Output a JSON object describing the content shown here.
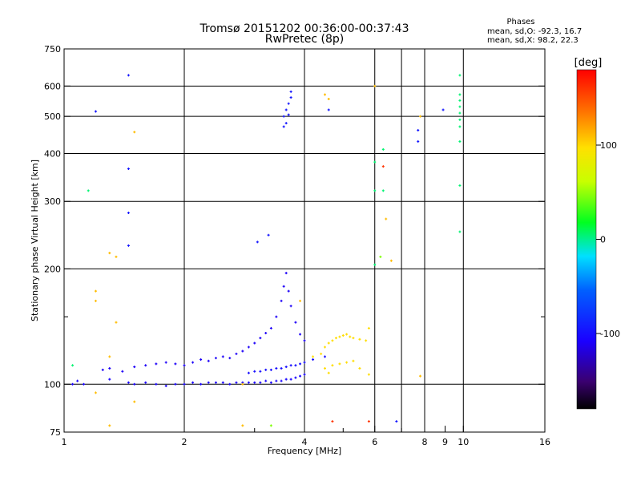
{
  "chart_data": {
    "type": "scatter",
    "title": "Tromsø 20151202 00:36:00-00:37:43",
    "subtitle": "RwPretec (8p)",
    "stats": {
      "header": "Phases",
      "line1": "mean, sd,O: -92.3, 16.7",
      "line2": "mean, sd,X:  98.2, 22.3"
    },
    "xlabel": "Frequency [MHz]",
    "ylabel": "Stationary phase Virtual Height [km]",
    "xscale": "log",
    "yscale": "log",
    "xlim": [
      1,
      16
    ],
    "ylim": [
      75,
      750
    ],
    "xticks": [
      1,
      2,
      4,
      6,
      8,
      9,
      10,
      16
    ],
    "xtick_labels": [
      "1",
      "2",
      "4",
      "6",
      "8",
      "9",
      "10",
      "16"
    ],
    "x_gridlines": [
      2,
      4,
      6,
      7,
      8,
      10
    ],
    "x_minor_ticks": [
      3,
      5,
      7
    ],
    "yticks": [
      75,
      100,
      200,
      300,
      400,
      500,
      600,
      750
    ],
    "ytick_labels": [
      "75",
      "100",
      "200",
      "300",
      "400",
      "500",
      "600",
      "750"
    ],
    "y_gridlines": [
      100,
      200,
      300,
      400,
      500,
      600
    ],
    "y_minor_ticks": [
      150
    ],
    "colorbar": {
      "label": "[deg]",
      "range": [
        -180,
        180
      ],
      "ticks": [
        100,
        0,
        -100
      ],
      "tick_labels": [
        "100",
        "0",
        "-100"
      ]
    },
    "series": [
      {
        "role": "O-mode low trace",
        "phase": -105,
        "points": [
          [
            1.05,
            100
          ],
          [
            1.08,
            102
          ],
          [
            1.12,
            100
          ],
          [
            1.3,
            103
          ],
          [
            1.45,
            101
          ],
          [
            1.5,
            100
          ],
          [
            1.6,
            101
          ],
          [
            1.7,
            100
          ],
          [
            1.8,
            99
          ],
          [
            1.9,
            100
          ],
          [
            2.0,
            100
          ],
          [
            2.1,
            101
          ],
          [
            2.2,
            100
          ],
          [
            2.3,
            101
          ],
          [
            2.4,
            101
          ],
          [
            2.5,
            101
          ],
          [
            2.6,
            100
          ],
          [
            2.7,
            101
          ],
          [
            2.8,
            101
          ],
          [
            2.9,
            101
          ],
          [
            3.0,
            101
          ],
          [
            3.1,
            101
          ],
          [
            3.2,
            102
          ],
          [
            3.3,
            101
          ],
          [
            3.4,
            102
          ],
          [
            3.5,
            102
          ],
          [
            3.6,
            103
          ],
          [
            3.7,
            103
          ],
          [
            3.8,
            104
          ],
          [
            3.9,
            105
          ],
          [
            4.0,
            106
          ]
        ]
      },
      {
        "role": "O-mode upper trace",
        "phase": -110,
        "points": [
          [
            1.25,
            109
          ],
          [
            1.3,
            110
          ],
          [
            1.4,
            108
          ],
          [
            1.5,
            111
          ],
          [
            1.6,
            112
          ],
          [
            1.7,
            113
          ],
          [
            1.8,
            114
          ],
          [
            1.9,
            113
          ],
          [
            2.0,
            112
          ],
          [
            2.1,
            114
          ],
          [
            2.2,
            116
          ],
          [
            2.3,
            115
          ],
          [
            2.4,
            117
          ],
          [
            2.5,
            118
          ],
          [
            2.6,
            117
          ],
          [
            2.7,
            120
          ],
          [
            2.8,
            122
          ],
          [
            2.9,
            125
          ],
          [
            3.0,
            128
          ],
          [
            3.1,
            132
          ],
          [
            3.2,
            136
          ],
          [
            3.3,
            140
          ],
          [
            3.4,
            150
          ],
          [
            3.5,
            165
          ],
          [
            3.55,
            180
          ],
          [
            3.6,
            195
          ],
          [
            3.65,
            175
          ],
          [
            3.7,
            160
          ],
          [
            3.8,
            145
          ],
          [
            3.9,
            135
          ],
          [
            4.0,
            130
          ]
        ]
      },
      {
        "role": "O-mode middle trace",
        "phase": -100,
        "points": [
          [
            2.9,
            107
          ],
          [
            3.0,
            108
          ],
          [
            3.1,
            108
          ],
          [
            3.2,
            109
          ],
          [
            3.3,
            109
          ],
          [
            3.4,
            110
          ],
          [
            3.5,
            110
          ],
          [
            3.6,
            111
          ],
          [
            3.7,
            112
          ],
          [
            3.8,
            112
          ],
          [
            3.9,
            113
          ],
          [
            4.0,
            114
          ],
          [
            4.2,
            116
          ],
          [
            4.5,
            118
          ]
        ]
      },
      {
        "role": "O-mode F-layer echoes",
        "phase": -95,
        "points": [
          [
            3.55,
            500
          ],
          [
            3.6,
            520
          ],
          [
            3.65,
            540
          ],
          [
            3.7,
            580
          ],
          [
            3.6,
            480
          ],
          [
            3.65,
            505
          ],
          [
            3.7,
            560
          ],
          [
            3.55,
            470
          ],
          [
            4.6,
            520
          ],
          [
            1.45,
            640
          ],
          [
            1.2,
            515
          ],
          [
            1.45,
            365
          ],
          [
            1.45,
            280
          ],
          [
            1.45,
            230
          ],
          [
            3.25,
            245
          ],
          [
            3.05,
            235
          ],
          [
            6.8,
            80
          ],
          [
            8.9,
            520
          ],
          [
            7.7,
            460
          ],
          [
            7.7,
            430
          ]
        ]
      },
      {
        "role": "X-mode trace",
        "phase": 98,
        "points": [
          [
            4.2,
            118
          ],
          [
            4.4,
            120
          ],
          [
            4.5,
            125
          ],
          [
            4.6,
            128
          ],
          [
            4.7,
            130
          ],
          [
            4.8,
            132
          ],
          [
            4.9,
            133
          ],
          [
            5.0,
            134
          ],
          [
            5.1,
            135
          ],
          [
            5.2,
            133
          ],
          [
            5.3,
            132
          ],
          [
            5.5,
            131
          ],
          [
            5.7,
            130
          ],
          [
            5.8,
            140
          ],
          [
            4.5,
            110
          ],
          [
            4.7,
            112
          ],
          [
            4.9,
            113
          ],
          [
            5.1,
            114
          ],
          [
            5.3,
            115
          ],
          [
            5.5,
            110
          ],
          [
            4.6,
            107
          ],
          [
            5.8,
            106
          ]
        ]
      },
      {
        "role": "X-mode sparse echoes",
        "phase": 110,
        "points": [
          [
            1.2,
            95
          ],
          [
            1.3,
            78
          ],
          [
            1.5,
            90
          ],
          [
            1.5,
            455
          ],
          [
            1.3,
            220
          ],
          [
            1.35,
            215
          ],
          [
            1.2,
            165
          ],
          [
            1.2,
            175
          ],
          [
            1.3,
            118
          ],
          [
            1.35,
            145
          ],
          [
            2.8,
            78
          ],
          [
            2.8,
            100
          ],
          [
            3.9,
            165
          ],
          [
            4.5,
            570
          ],
          [
            4.6,
            555
          ],
          [
            6.0,
            600
          ],
          [
            6.4,
            270
          ],
          [
            6.6,
            210
          ],
          [
            7.8,
            500
          ],
          [
            7.8,
            105
          ]
        ]
      },
      {
        "role": "cyan high-frequency echoes",
        "phase": 5,
        "points": [
          [
            9.8,
            640
          ],
          [
            9.8,
            570
          ],
          [
            9.8,
            550
          ],
          [
            9.8,
            530
          ],
          [
            9.8,
            510
          ],
          [
            9.8,
            490
          ],
          [
            9.8,
            470
          ],
          [
            9.8,
            430
          ],
          [
            9.8,
            330
          ],
          [
            9.8,
            250
          ],
          [
            6.0,
            380
          ],
          [
            6.0,
            320
          ],
          [
            6.0,
            205
          ],
          [
            6.3,
            410
          ],
          [
            6.3,
            320
          ],
          [
            1.15,
            320
          ],
          [
            1.05,
            112
          ]
        ]
      },
      {
        "role": "red echoes",
        "phase": 160,
        "points": [
          [
            6.3,
            370
          ],
          [
            5.8,
            80
          ],
          [
            4.7,
            80
          ]
        ]
      },
      {
        "role": "green echoes",
        "phase": 45,
        "points": [
          [
            6.2,
            215
          ],
          [
            3.3,
            78
          ]
        ]
      }
    ]
  }
}
